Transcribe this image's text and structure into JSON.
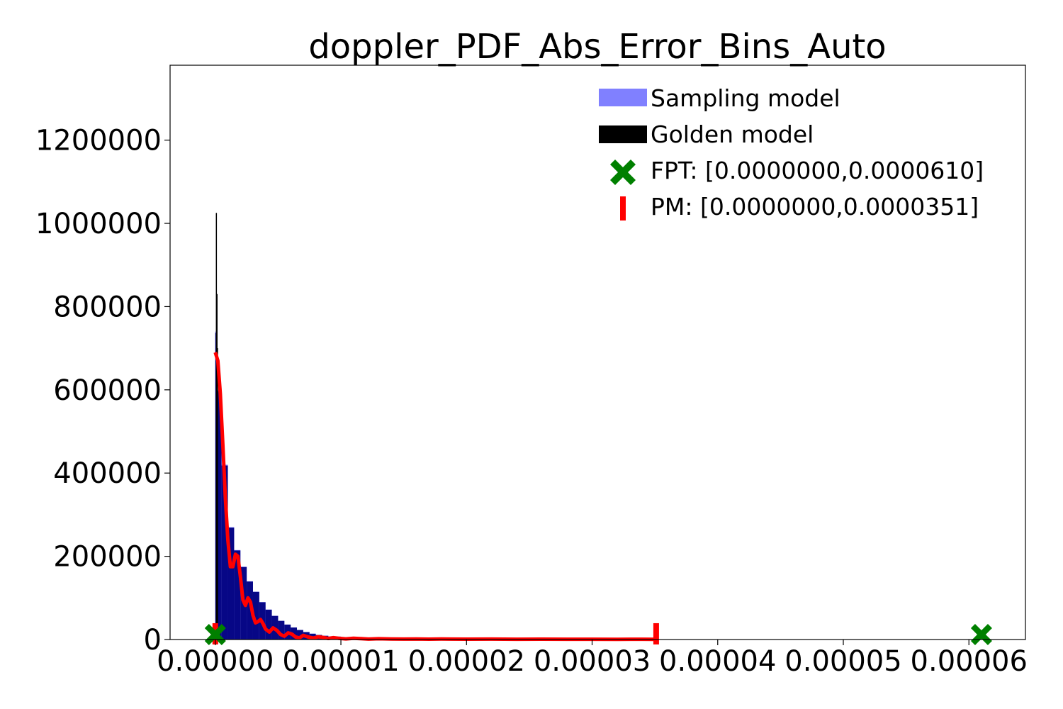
{
  "chart_data": {
    "type": "histogram",
    "title": "doppler_PDF_Abs_Error_Bins_Auto",
    "xlabel": "",
    "ylabel": "",
    "xlim": [
      -3.6e-06,
      6.45e-05
    ],
    "ylim": [
      0,
      1380000
    ],
    "x_ticks": [
      0.0,
      1e-05,
      2e-05,
      3e-05,
      4e-05,
      5e-05,
      6e-05
    ],
    "x_tick_labels": [
      "0.00000",
      "0.00001",
      "0.00002",
      "0.00003",
      "0.00004",
      "0.00005",
      "0.00006"
    ],
    "y_ticks": [
      0,
      200000,
      400000,
      600000,
      800000,
      1000000,
      1200000
    ],
    "y_tick_labels": [
      "0",
      "200000",
      "400000",
      "600000",
      "800000",
      "1000000",
      "1200000"
    ],
    "grid": false,
    "legend_position": "top-right",
    "series": [
      {
        "name": "Sampling model",
        "kind": "histogram",
        "color": "#8080ff",
        "bins": [
          [
            0.0,
            1e-07,
            740000
          ],
          [
            1e-07,
            5e-07,
            600000
          ],
          [
            5e-07,
            1e-06,
            420000
          ],
          [
            1e-06,
            1.5e-06,
            270000
          ],
          [
            1.5e-06,
            2e-06,
            215000
          ],
          [
            2e-06,
            2.5e-06,
            175000
          ],
          [
            2.5e-06,
            3e-06,
            140000
          ],
          [
            3e-06,
            3.5e-06,
            115000
          ],
          [
            3.5e-06,
            4e-06,
            90000
          ],
          [
            4e-06,
            4.5e-06,
            72000
          ],
          [
            4.5e-06,
            5e-06,
            57000
          ],
          [
            5e-06,
            5.5e-06,
            45000
          ],
          [
            5.5e-06,
            6e-06,
            36000
          ],
          [
            6e-06,
            6.5e-06,
            29000
          ],
          [
            6.5e-06,
            7e-06,
            23000
          ],
          [
            7e-06,
            7.5e-06,
            18000
          ],
          [
            7.5e-06,
            8e-06,
            14000
          ],
          [
            8e-06,
            8.5e-06,
            11000
          ],
          [
            8.5e-06,
            9e-06,
            9000
          ],
          [
            9e-06,
            1e-05,
            7000
          ],
          [
            1e-05,
            1.1e-05,
            5000
          ],
          [
            1.1e-05,
            1.2e-05,
            3500
          ],
          [
            1.2e-05,
            1.4e-05,
            2500
          ]
        ]
      },
      {
        "name": "Golden model",
        "kind": "histogram",
        "color": "#000000",
        "bins": [
          [
            5e-08,
            9e-08,
            1025000
          ],
          [
            1e-07,
            1.4e-07,
            830000
          ],
          [
            1.4e-07,
            1.8e-07,
            700000
          ]
        ]
      },
      {
        "name": "Sampling model PDF",
        "kind": "line",
        "color": "#ff0000",
        "x": [
          0.0,
          2e-07,
          4e-07,
          6e-07,
          8e-07,
          1e-06,
          1.2e-06,
          1.4e-06,
          1.6e-06,
          1.8e-06,
          2e-06,
          2.2e-06,
          2.4e-06,
          2.6e-06,
          2.8e-06,
          3e-06,
          3.2e-06,
          3.4e-06,
          3.6e-06,
          3.8e-06,
          4e-06,
          4.3e-06,
          4.6e-06,
          4.9e-06,
          5.2e-06,
          5.5e-06,
          5.8e-06,
          6.1e-06,
          6.4e-06,
          6.7e-06,
          7e-06,
          7.4e-06,
          7.8e-06,
          8.2e-06,
          8.6e-06,
          9e-06,
          9.4e-06,
          9.8e-06,
          1.04e-05,
          1.1e-05,
          1.16e-05,
          1.22e-05,
          1.3e-05,
          1.4e-05,
          1.5e-05,
          1.6e-05,
          1.7e-05,
          1.8e-05,
          2e-05,
          2.2e-05,
          2.4e-05,
          2.6e-05,
          2.8e-05,
          3e-05,
          3.2e-05,
          3.4e-05,
          3.51e-05
        ],
        "y": [
          690000,
          670000,
          590000,
          470000,
          340000,
          240000,
          175000,
          175000,
          205000,
          200000,
          150000,
          95000,
          82000,
          100000,
          90000,
          58000,
          40000,
          43000,
          48000,
          38000,
          25000,
          18000,
          28000,
          22000,
          12000,
          8000,
          16000,
          13000,
          6000,
          4000,
          10000,
          6000,
          3500,
          6500,
          5000,
          2500,
          4500,
          3000,
          1500,
          3000,
          2000,
          1000,
          1800,
          1200,
          1000,
          1400,
          900,
          1200,
          800,
          1000,
          700,
          800,
          600,
          700,
          500,
          600,
          500
        ]
      },
      {
        "name": "FPT: [0.0000000,0.0000610]",
        "kind": "marker",
        "marker": "x-filled",
        "color": "#008000",
        "x": [
          0.0,
          6.1e-05
        ],
        "y": [
          12000,
          12000
        ]
      },
      {
        "name": "PM: [0.0000000,0.0000351]",
        "kind": "marker",
        "marker": "vline",
        "color": "#ff0000",
        "x": [
          0.0,
          3.51e-05
        ],
        "y": [
          12000,
          12000
        ]
      }
    ]
  }
}
